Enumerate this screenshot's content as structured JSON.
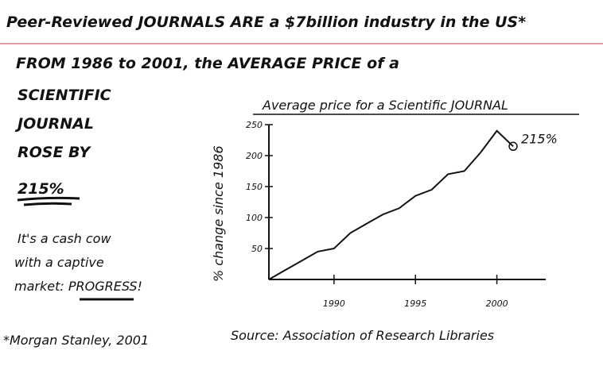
{
  "card": {
    "header": "Peer-Reviewed JOURNALS ARE a $7billion industry in the US*",
    "heading": "FROM 1986 to 2001, the AVERAGE PRICE of a",
    "side": [
      "SCIENTIFIC",
      "JOURNAL",
      "ROSE BY",
      "215%"
    ],
    "note": [
      "It's a cash cow",
      "with a captive",
      "market: PROGRESS!"
    ],
    "footnote": "*Morgan Stanley, 2001",
    "source": "Source: Association of Research Libraries"
  },
  "chart_data": {
    "type": "line",
    "title": "Average price for a Scientific JOURNAL",
    "y_label": "% change since 1986",
    "annotation": "215%",
    "x": [
      1986,
      1987,
      1988,
      1989,
      1990,
      1991,
      1992,
      1993,
      1994,
      1995,
      1996,
      1997,
      1998,
      1999,
      2000,
      2001
    ],
    "values": [
      0,
      15,
      30,
      45,
      50,
      75,
      90,
      105,
      115,
      135,
      145,
      170,
      175,
      205,
      240,
      215
    ],
    "color": "#111111",
    "xlim": [
      1986,
      2003
    ],
    "xticks": [
      1990,
      1995,
      2000
    ],
    "ylim": [
      0,
      250
    ],
    "yticks": [
      50,
      100,
      150,
      200,
      250
    ]
  }
}
